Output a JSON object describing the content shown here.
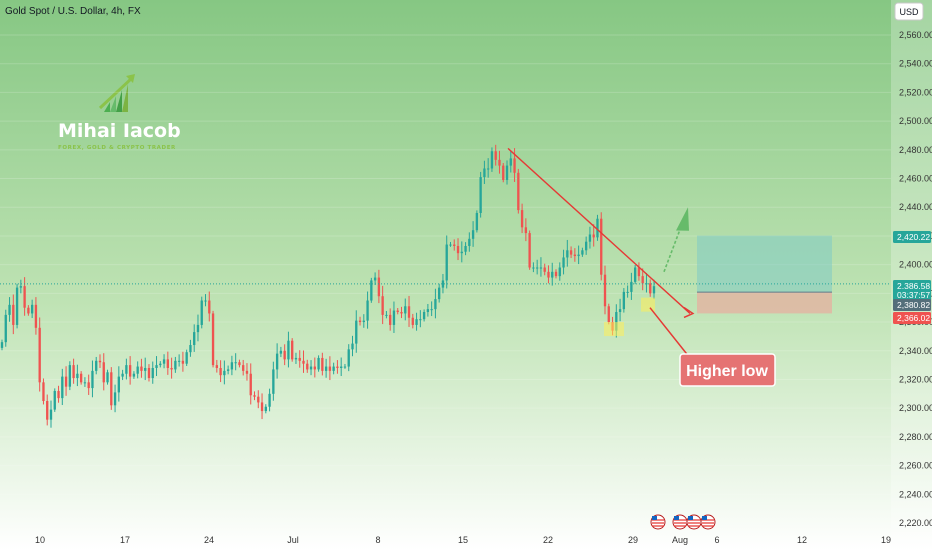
{
  "header": {
    "title": "Gold Spot / U.S. Dollar, 4h, FX",
    "currency": "USD"
  },
  "logo": {
    "name": "Mihai Iacob",
    "tagline": "FOREX, GOLD & CRYPTO TRADER"
  },
  "annotation": {
    "text": "Higher low"
  },
  "colors": {
    "up": "#26a69a",
    "down": "#ef5350",
    "trendline": "#e53935",
    "arrow_up": "#66bb6a",
    "target_zone": "#80cbc4",
    "stop_zone": "#e6b0a0",
    "bg_top": "#86c783",
    "bg_bottom": "#ffffff"
  },
  "chart_data": {
    "type": "candlestick",
    "symbol": "XAUUSD",
    "timeframe": "4h",
    "ylim": [
      2215,
      2580
    ],
    "y_ticks": [
      2220,
      2240,
      2260,
      2280,
      2300,
      2320,
      2340,
      2360,
      2380,
      2400,
      2420,
      2440,
      2460,
      2480,
      2500,
      2520,
      2540,
      2560
    ],
    "y_tick_labels": [
      "2,220.00",
      "2,240.00",
      "2,260.00",
      "2,280.00",
      "2,300.00",
      "2,320.00",
      "2,340.00",
      "2,360.00",
      "2,380.00",
      "2,400.00",
      "2,420.00",
      "2,440.00",
      "2,460.00",
      "2,480.00",
      "2,500.00",
      "2,520.00",
      "2,540.00",
      "2,560.00"
    ],
    "x_tick_labels": [
      "10",
      "17",
      "24",
      "Jul",
      "8",
      "15",
      "22",
      "29",
      "Aug",
      "6",
      "12",
      "19"
    ],
    "price_labels": [
      {
        "label": "2,420.22",
        "value": 2420.22,
        "color": "#26a69a"
      },
      {
        "label": "2,386.58",
        "value": 2386.58,
        "color": "#26a69a"
      },
      {
        "label": "03:37:57",
        "value": 2383.7,
        "color": "#26a69a"
      },
      {
        "label": "2,380.82",
        "value": 2380.82,
        "color": "#546e7a"
      },
      {
        "label": "2,366.02",
        "value": 2366.02,
        "color": "#ef5350"
      }
    ],
    "trade_setup": {
      "target": 2420.22,
      "entry": 2380.82,
      "stop": 2366.02
    },
    "current_price": 2386.58,
    "trendline": {
      "from": 2481,
      "to": 2366,
      "description": "descending resistance"
    },
    "annotations": [
      "Higher low"
    ],
    "closes": [
      2346,
      2365,
      2372,
      2358,
      2384,
      2385,
      2370,
      2366,
      2372,
      2356,
      2318,
      2305,
      2292,
      2299,
      2312,
      2307,
      2322,
      2315,
      2330,
      2321,
      2324,
      2318,
      2318,
      2314,
      2326,
      2333,
      2332,
      2318,
      2325,
      2302,
      2311,
      2322,
      2324,
      2330,
      2322,
      2324,
      2329,
      2326,
      2328,
      2321,
      2328,
      2330,
      2331,
      2334,
      2328,
      2327,
      2333,
      2333,
      2331,
      2339,
      2344,
      2353,
      2358,
      2375,
      2375,
      2366,
      2330,
      2328,
      2323,
      2326,
      2327,
      2332,
      2332,
      2330,
      2326,
      2324,
      2309,
      2308,
      2304,
      2298,
      2301,
      2310,
      2327,
      2338,
      2340,
      2334,
      2347,
      2334,
      2335,
      2333,
      2331,
      2327,
      2329,
      2327,
      2335,
      2326,
      2329,
      2326,
      2329,
      2328,
      2329,
      2329,
      2341,
      2345,
      2361,
      2360,
      2361,
      2375,
      2389,
      2391,
      2378,
      2365,
      2365,
      2358,
      2368,
      2367,
      2366,
      2371,
      2363,
      2358,
      2362,
      2362,
      2367,
      2369,
      2369,
      2376,
      2384,
      2389,
      2414,
      2414,
      2413,
      2408,
      2409,
      2413,
      2418,
      2424,
      2436,
      2461,
      2467,
      2467,
      2479,
      2473,
      2469,
      2459,
      2469,
      2474,
      2464,
      2438,
      2426,
      2422,
      2398,
      2398,
      2398,
      2398,
      2395,
      2391,
      2395,
      2392,
      2398,
      2405,
      2410,
      2407,
      2406,
      2407,
      2410,
      2416,
      2421,
      2419,
      2432,
      2393,
      2371,
      2360,
      2354,
      2367,
      2369,
      2381,
      2381,
      2388,
      2398,
      2392,
      2387,
      2387,
      2380,
      2385
    ]
  }
}
